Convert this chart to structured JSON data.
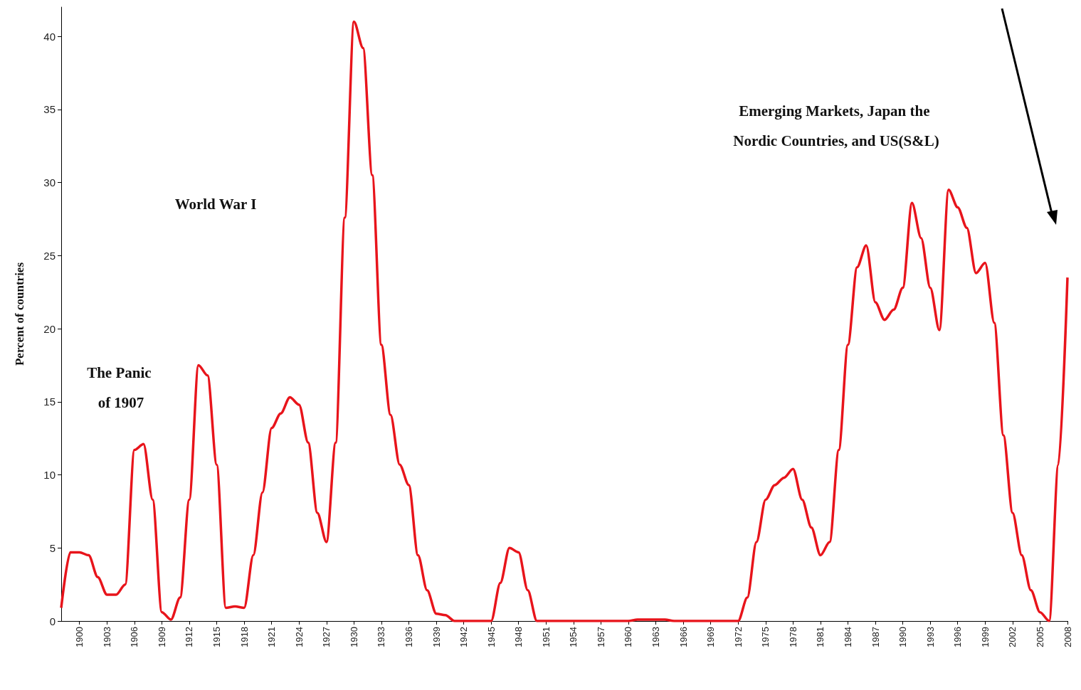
{
  "chart_data": {
    "type": "line",
    "ylabel": "Percent of countries",
    "x": [
      1898,
      1899,
      1900,
      1901,
      1902,
      1903,
      1904,
      1905,
      1906,
      1907,
      1908,
      1909,
      1910,
      1911,
      1912,
      1913,
      1914,
      1915,
      1916,
      1917,
      1918,
      1919,
      1920,
      1921,
      1922,
      1923,
      1924,
      1925,
      1926,
      1927,
      1928,
      1929,
      1930,
      1931,
      1932,
      1933,
      1934,
      1935,
      1936,
      1937,
      1938,
      1939,
      1940,
      1941,
      1942,
      1943,
      1944,
      1945,
      1946,
      1947,
      1948,
      1949,
      1950,
      1951,
      1952,
      1953,
      1954,
      1955,
      1956,
      1957,
      1958,
      1959,
      1960,
      1961,
      1962,
      1963,
      1964,
      1965,
      1966,
      1967,
      1968,
      1969,
      1970,
      1971,
      1972,
      1973,
      1974,
      1975,
      1976,
      1977,
      1978,
      1979,
      1980,
      1981,
      1982,
      1983,
      1984,
      1985,
      1986,
      1987,
      1988,
      1989,
      1990,
      1991,
      1992,
      1993,
      1994,
      1995,
      1996,
      1997,
      1998,
      1999,
      2000,
      2001,
      2002,
      2003,
      2004,
      2005,
      2006,
      2007,
      2008
    ],
    "values": [
      0.9,
      4.7,
      4.7,
      4.5,
      3,
      1.8,
      1.8,
      2.5,
      11.7,
      12.1,
      8.3,
      0.6,
      0.1,
      1.6,
      8.3,
      17.5,
      16.8,
      10.7,
      0.9,
      1,
      0.9,
      4.5,
      8.8,
      13.2,
      14.2,
      15.3,
      14.8,
      12.2,
      7.4,
      5.4,
      12.2,
      27.6,
      41,
      39.2,
      30.5,
      18.9,
      14.1,
      10.7,
      9.3,
      4.5,
      2.1,
      0.5,
      0.4,
      0,
      0,
      0,
      0,
      0,
      2.6,
      5,
      4.7,
      2.1,
      0,
      0,
      0,
      0,
      0,
      0,
      0,
      0,
      0,
      0,
      0,
      0.1,
      0.1,
      0.1,
      0.1,
      0,
      0,
      0,
      0,
      0,
      0,
      0,
      0,
      1.6,
      5.4,
      8.3,
      9.3,
      9.8,
      10.4,
      8.3,
      6.4,
      4.5,
      5.4,
      11.7,
      18.9,
      24.2,
      25.7,
      21.8,
      20.6,
      21.3,
      22.8,
      28.6,
      26.2,
      22.8,
      19.9,
      29.5,
      28.3,
      26.9,
      23.8,
      24.5,
      20.4,
      12.7,
      7.4,
      4.5,
      2.1,
      0.6,
      0,
      10.7,
      23.5
    ],
    "color": "#e8141b",
    "xlim": [
      1898,
      2008
    ],
    "xticks": [
      1900,
      1903,
      1906,
      1909,
      1912,
      1915,
      1918,
      1921,
      1924,
      1927,
      1930,
      1933,
      1936,
      1939,
      1942,
      1945,
      1948,
      1951,
      1954,
      1957,
      1960,
      1963,
      1966,
      1969,
      1972,
      1975,
      1978,
      1981,
      1984,
      1987,
      1990,
      1993,
      1996,
      1999,
      2002,
      2005,
      2008
    ],
    "ylim": [
      0,
      42
    ],
    "yticks": [
      0,
      5,
      10,
      15,
      20,
      25,
      30,
      35,
      40
    ],
    "grid": false,
    "annotations": [
      "The Panic of 1907",
      "World War I",
      "Emerging Markets, Japan the Nordic Countries, and US(S&L)"
    ]
  }
}
